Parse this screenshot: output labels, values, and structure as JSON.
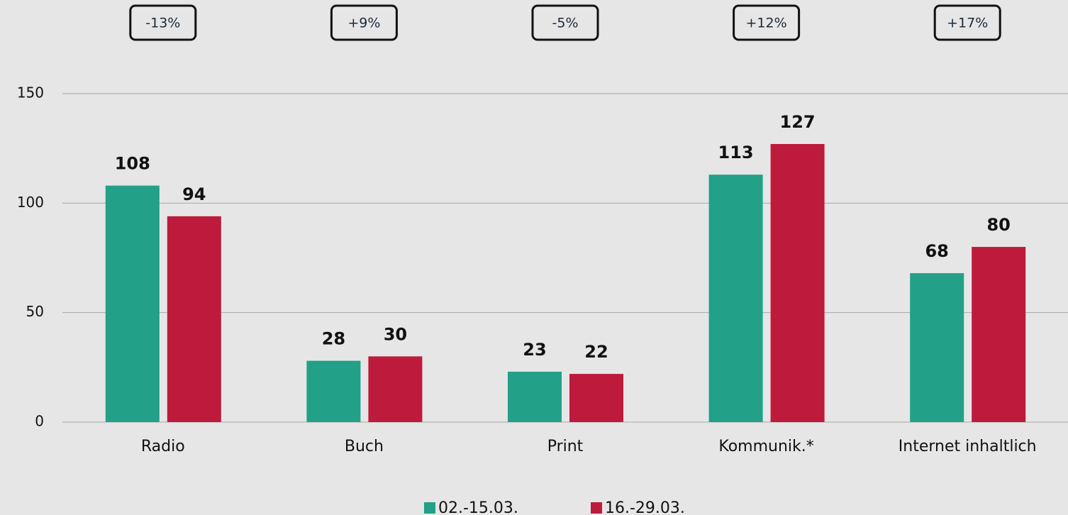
{
  "chart_data": {
    "type": "bar",
    "categories": [
      "Radio",
      "Buch",
      "Print",
      "Kommunik.*",
      "Internet inhaltlich"
    ],
    "series": [
      {
        "name": "02.-15.03.",
        "color": "#22a088",
        "values": [
          108,
          28,
          23,
          113,
          68
        ]
      },
      {
        "name": "16.-29.03.",
        "color": "#be1a3c",
        "values": [
          94,
          30,
          22,
          127,
          80
        ]
      }
    ],
    "annotations": [
      "-13%",
      "+9%",
      "-5%",
      "+12%",
      "+17%"
    ],
    "ylim": [
      0,
      150
    ],
    "yticks": [
      0,
      50,
      100,
      150
    ],
    "grid": true,
    "legend": "bottom"
  }
}
